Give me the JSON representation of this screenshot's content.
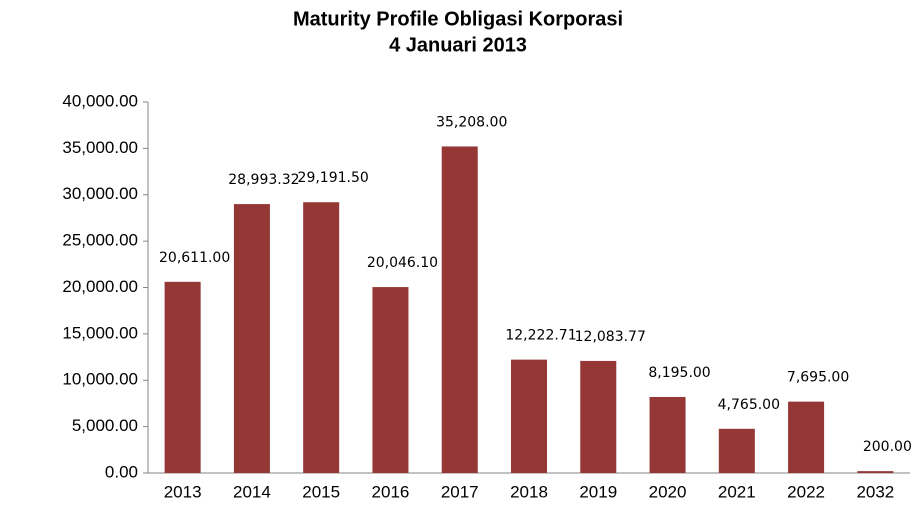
{
  "chart_data": {
    "type": "bar",
    "title": "Maturity Profile Obligasi Korporasi",
    "subtitle": "4 Januari 2013",
    "categories": [
      "2013",
      "2014",
      "2015",
      "2016",
      "2017",
      "2018",
      "2019",
      "2020",
      "2021",
      "2022",
      "2032"
    ],
    "values": [
      20611.0,
      28993.32,
      29191.5,
      20046.1,
      35208.0,
      12222.71,
      12083.77,
      8195.0,
      4765.0,
      7695.0,
      200.0
    ],
    "value_labels": [
      "20,611.00",
      "28,993.32",
      "29,191.50",
      "20,046.10",
      "35,208.00",
      "12,222.71",
      "12,083.77",
      "8,195.00",
      "4,765.00",
      "7,695.00",
      "200.00"
    ],
    "color": "#953735",
    "ylim": [
      0,
      40000
    ],
    "yticks": [
      {
        "value": 0,
        "label": "0.00"
      },
      {
        "value": 5000,
        "label": "5,000.00"
      },
      {
        "value": 10000,
        "label": "10,000.00"
      },
      {
        "value": 15000,
        "label": "15,000.00"
      },
      {
        "value": 20000,
        "label": "20,000.00"
      },
      {
        "value": 25000,
        "label": "25,000.00"
      },
      {
        "value": 30000,
        "label": "30,000.00"
      },
      {
        "value": 35000,
        "label": "35,000.00"
      },
      {
        "value": 40000,
        "label": "40,000.00"
      }
    ],
    "grid": false
  }
}
